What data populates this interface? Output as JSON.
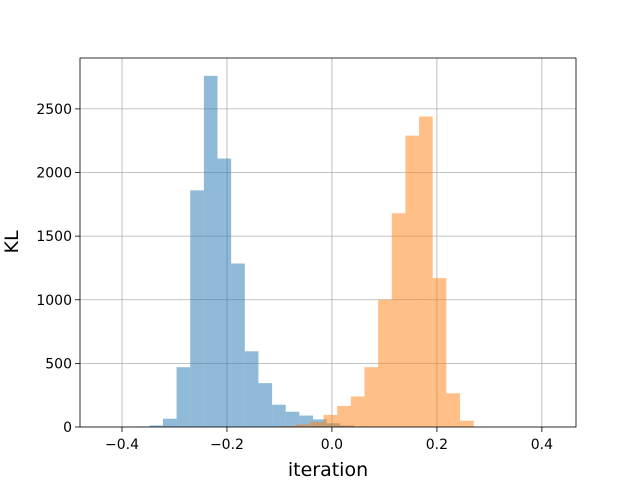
{
  "chart_data": {
    "type": "bar",
    "title": "",
    "xlabel": "iteration",
    "ylabel": "KL",
    "xlim": [
      -0.48,
      0.465
    ],
    "ylim": [
      0,
      2900
    ],
    "xticks": [
      -0.4,
      -0.2,
      0.0,
      0.2,
      0.4
    ],
    "xtick_labels": [
      "−0.4",
      "−0.2",
      "0.0",
      "0.2",
      "0.4"
    ],
    "yticks": [
      0,
      500,
      1000,
      1500,
      2000,
      2500
    ],
    "ytick_labels": [
      "0",
      "500",
      "1000",
      "1500",
      "2000",
      "2500"
    ],
    "grid": true,
    "legend": "none",
    "series": [
      {
        "color": "#1f77b4",
        "opacity": 0.5,
        "bins": [
          {
            "x0": -0.4,
            "x1": -0.374,
            "value": 2
          },
          {
            "x0": -0.374,
            "x1": -0.348,
            "value": 4
          },
          {
            "x0": -0.348,
            "x1": -0.322,
            "value": 12
          },
          {
            "x0": -0.322,
            "x1": -0.296,
            "value": 65
          },
          {
            "x0": -0.296,
            "x1": -0.27,
            "value": 470
          },
          {
            "x0": -0.27,
            "x1": -0.244,
            "value": 1860
          },
          {
            "x0": -0.244,
            "x1": -0.218,
            "value": 2760
          },
          {
            "x0": -0.218,
            "x1": -0.192,
            "value": 2110
          },
          {
            "x0": -0.192,
            "x1": -0.166,
            "value": 1285
          },
          {
            "x0": -0.166,
            "x1": -0.14,
            "value": 595
          },
          {
            "x0": -0.14,
            "x1": -0.114,
            "value": 345
          },
          {
            "x0": -0.114,
            "x1": -0.088,
            "value": 175
          },
          {
            "x0": -0.088,
            "x1": -0.062,
            "value": 120
          },
          {
            "x0": -0.062,
            "x1": -0.036,
            "value": 90
          },
          {
            "x0": -0.036,
            "x1": -0.01,
            "value": 60
          },
          {
            "x0": -0.01,
            "x1": 0.016,
            "value": 30
          },
          {
            "x0": 0.016,
            "x1": 0.042,
            "value": 12
          },
          {
            "x0": 0.042,
            "x1": 0.068,
            "value": 4
          }
        ]
      },
      {
        "color": "#ff7f0e",
        "opacity": 0.5,
        "bins": [
          {
            "x0": -0.12,
            "x1": -0.094,
            "value": 3
          },
          {
            "x0": -0.094,
            "x1": -0.068,
            "value": 8
          },
          {
            "x0": -0.068,
            "x1": -0.042,
            "value": 20
          },
          {
            "x0": -0.042,
            "x1": -0.016,
            "value": 40
          },
          {
            "x0": -0.016,
            "x1": 0.01,
            "value": 95
          },
          {
            "x0": 0.01,
            "x1": 0.036,
            "value": 165
          },
          {
            "x0": 0.036,
            "x1": 0.062,
            "value": 240
          },
          {
            "x0": 0.062,
            "x1": 0.088,
            "value": 470
          },
          {
            "x0": 0.088,
            "x1": 0.114,
            "value": 1000
          },
          {
            "x0": 0.114,
            "x1": 0.14,
            "value": 1680
          },
          {
            "x0": 0.14,
            "x1": 0.166,
            "value": 2290
          },
          {
            "x0": 0.166,
            "x1": 0.192,
            "value": 2440
          },
          {
            "x0": 0.192,
            "x1": 0.218,
            "value": 1170
          },
          {
            "x0": 0.218,
            "x1": 0.244,
            "value": 265
          },
          {
            "x0": 0.244,
            "x1": 0.27,
            "value": 50
          }
        ]
      }
    ]
  }
}
